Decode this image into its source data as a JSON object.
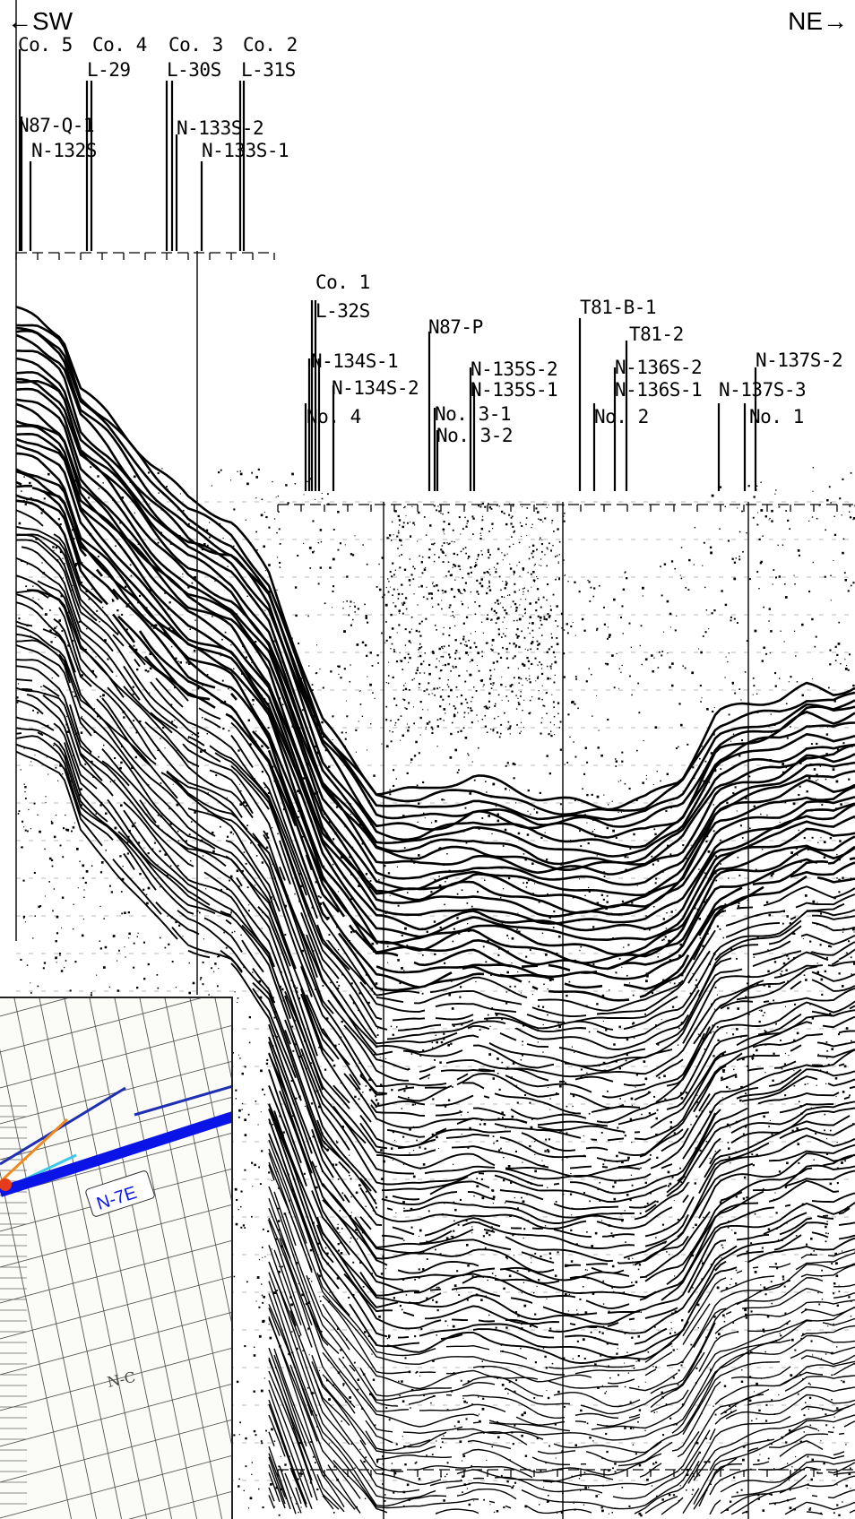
{
  "orientation": {
    "left": "←SW",
    "right": "NE→"
  },
  "wells": [
    {
      "id": "co5",
      "name": "Co. 5"
    },
    {
      "id": "co4",
      "name": "Co. 4"
    },
    {
      "id": "l29",
      "name": "L-29"
    },
    {
      "id": "co3",
      "name": "Co. 3"
    },
    {
      "id": "l30s",
      "name": "L-30S"
    },
    {
      "id": "co2",
      "name": "Co. 2"
    },
    {
      "id": "l31s",
      "name": "L-31S"
    },
    {
      "id": "n87q1",
      "name": "N87-Q-1"
    },
    {
      "id": "n132s",
      "name": "N-132S"
    },
    {
      "id": "n133s2",
      "name": "N-133S-2"
    },
    {
      "id": "n133s1",
      "name": "N-133S-1"
    },
    {
      "id": "co1",
      "name": "Co. 1"
    },
    {
      "id": "l32s",
      "name": "L-32S"
    },
    {
      "id": "n134s1",
      "name": "N-134S-1"
    },
    {
      "id": "n134s2",
      "name": "N-134S-2"
    },
    {
      "id": "no4",
      "name": "No. 4"
    },
    {
      "id": "n87p",
      "name": "N87-P"
    },
    {
      "id": "no31",
      "name": "No. 3-1"
    },
    {
      "id": "no32",
      "name": "No. 3-2"
    },
    {
      "id": "n135s2",
      "name": "N-135S-2"
    },
    {
      "id": "n135s1",
      "name": "N-135S-1"
    },
    {
      "id": "t81b1",
      "name": "T81-B-1"
    },
    {
      "id": "t812",
      "name": "T81-2"
    },
    {
      "id": "n136s2",
      "name": "N-136S-2"
    },
    {
      "id": "n136s1",
      "name": "N-136S-1"
    },
    {
      "id": "no2",
      "name": "No. 2"
    },
    {
      "id": "n137s3",
      "name": "N-137S-3"
    },
    {
      "id": "n137s2",
      "name": "N-137S-2"
    },
    {
      "id": "no1",
      "name": "No. 1"
    }
  ],
  "inset_map": {
    "line_label": "N-7E",
    "area_label": "N-C",
    "line_color": "#0a14e6",
    "secondary_line_color": "#1e2fb4",
    "accent_colors": [
      "#f08a1c",
      "#3cc8e6",
      "#e63c1e"
    ]
  },
  "section": {
    "trace_color": "#000000",
    "background": "#ffffff"
  }
}
